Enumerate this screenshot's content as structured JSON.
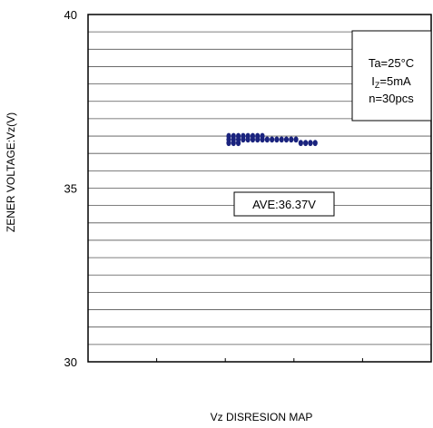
{
  "chart_data": {
    "type": "scatter",
    "title": "",
    "xlabel": "Vz DISRESION MAP",
    "ylabel": "ZENER VOLTAGE:Vz(V)",
    "ylim": [
      30,
      40
    ],
    "yticks": [
      "30",
      "35",
      "40"
    ],
    "grid": true,
    "grid_step": 0.5,
    "x_categories": 5,
    "series": [
      {
        "color": "#1a237e",
        "points": [
          {
            "x": 2.05,
            "y": 36.5
          },
          {
            "x": 2.12,
            "y": 36.5
          },
          {
            "x": 2.19,
            "y": 36.5
          },
          {
            "x": 2.26,
            "y": 36.5
          },
          {
            "x": 2.33,
            "y": 36.5
          },
          {
            "x": 2.4,
            "y": 36.5
          },
          {
            "x": 2.47,
            "y": 36.5
          },
          {
            "x": 2.54,
            "y": 36.5
          },
          {
            "x": 2.05,
            "y": 36.4
          },
          {
            "x": 2.12,
            "y": 36.4
          },
          {
            "x": 2.19,
            "y": 36.4
          },
          {
            "x": 2.26,
            "y": 36.4
          },
          {
            "x": 2.33,
            "y": 36.4
          },
          {
            "x": 2.4,
            "y": 36.4
          },
          {
            "x": 2.47,
            "y": 36.4
          },
          {
            "x": 2.54,
            "y": 36.4
          },
          {
            "x": 2.61,
            "y": 36.4
          },
          {
            "x": 2.68,
            "y": 36.4
          },
          {
            "x": 2.75,
            "y": 36.4
          },
          {
            "x": 2.82,
            "y": 36.4
          },
          {
            "x": 2.89,
            "y": 36.4
          },
          {
            "x": 2.96,
            "y": 36.4
          },
          {
            "x": 3.03,
            "y": 36.4
          },
          {
            "x": 2.05,
            "y": 36.3
          },
          {
            "x": 2.12,
            "y": 36.3
          },
          {
            "x": 2.19,
            "y": 36.3
          },
          {
            "x": 3.1,
            "y": 36.3
          },
          {
            "x": 3.17,
            "y": 36.3
          },
          {
            "x": 3.24,
            "y": 36.3
          },
          {
            "x": 3.31,
            "y": 36.3
          }
        ]
      }
    ],
    "legend_box": {
      "line1": "Ta=25°C",
      "line2_main": "I",
      "line2_sub": "Z",
      "line2_rest": "=5mA",
      "line3": "n=30pcs",
      "placement": "top-right"
    },
    "average_label": "AVE:36.37V"
  }
}
